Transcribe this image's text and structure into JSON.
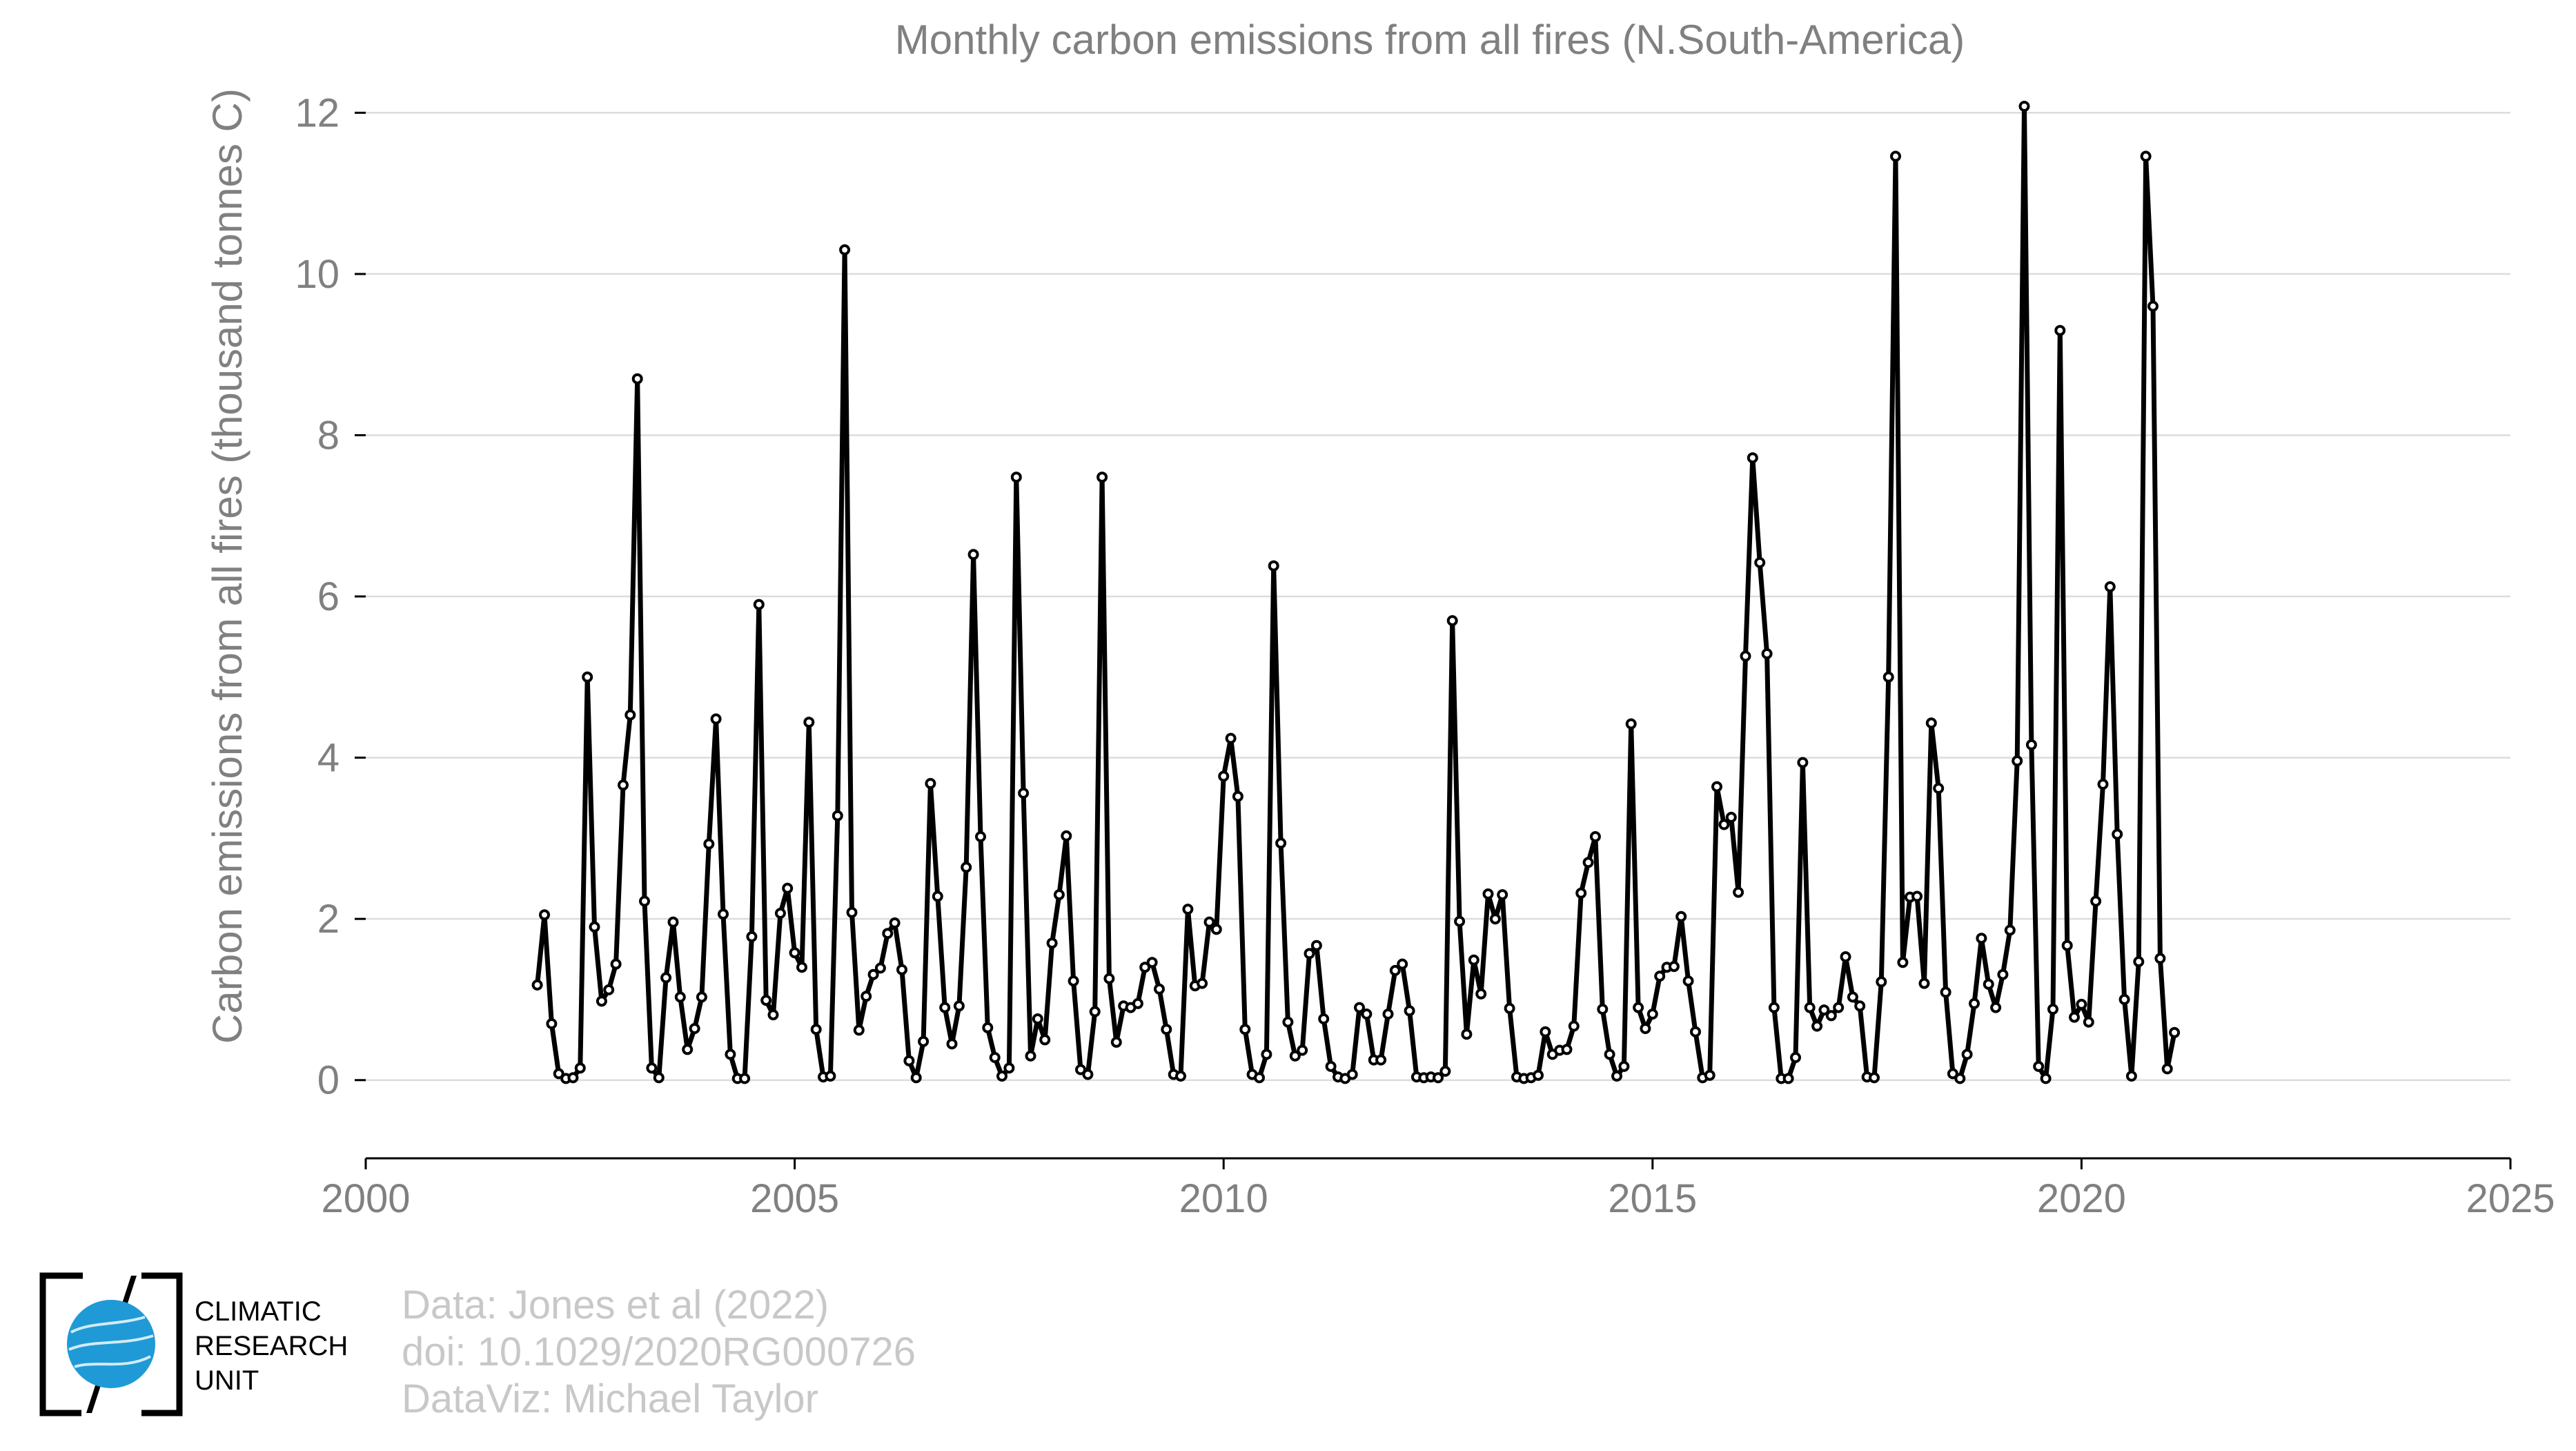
{
  "chart_data": {
    "type": "line",
    "title": "Monthly carbon emissions from all fires (N.South-America)",
    "xlabel": "",
    "ylabel": "Carbon emissions from all fires (thousand tonnes C)",
    "xlim": [
      2000,
      2025
    ],
    "ylim": [
      -0.97,
      12.2
    ],
    "x_ticks": [
      "2000",
      "2005",
      "2010",
      "2015",
      "2020",
      "2025"
    ],
    "y_ticks": [
      "0",
      "2",
      "4",
      "6",
      "8",
      "10",
      "12"
    ],
    "grid": "horizontal",
    "series": [
      {
        "start_year": 2002,
        "start_month": 1,
        "frequency": "monthly",
        "values": [
          1.18,
          2.05,
          0.7,
          0.08,
          0.02,
          0.03,
          0.15,
          5.0,
          1.9,
          0.98,
          1.12,
          1.44,
          3.66,
          4.53,
          8.7,
          2.22,
          0.15,
          0.03,
          1.27,
          1.96,
          1.03,
          0.38,
          0.64,
          1.03,
          2.93,
          4.48,
          2.06,
          0.32,
          0.02,
          0.02,
          1.78,
          5.9,
          0.99,
          0.81,
          2.07,
          2.38,
          1.58,
          1.4,
          4.44,
          0.63,
          0.04,
          0.05,
          3.28,
          10.3,
          2.08,
          0.62,
          1.04,
          1.31,
          1.39,
          1.82,
          1.95,
          1.37,
          0.24,
          0.03,
          0.48,
          3.68,
          2.28,
          0.9,
          0.45,
          0.92,
          2.64,
          6.52,
          3.02,
          0.65,
          0.28,
          0.05,
          0.15,
          7.48,
          3.56,
          0.3,
          0.76,
          0.5,
          1.7,
          2.3,
          3.03,
          1.23,
          0.13,
          0.07,
          0.85,
          7.48,
          1.26,
          0.47,
          0.92,
          0.9,
          0.95,
          1.4,
          1.46,
          1.13,
          0.63,
          0.07,
          0.05,
          2.12,
          1.17,
          1.2,
          1.96,
          1.87,
          3.77,
          4.24,
          3.52,
          0.63,
          0.07,
          0.03,
          0.32,
          6.38,
          2.94,
          0.72,
          0.3,
          0.37,
          1.57,
          1.67,
          0.76,
          0.17,
          0.04,
          0.02,
          0.07,
          0.9,
          0.82,
          0.25,
          0.25,
          0.82,
          1.36,
          1.44,
          0.86,
          0.04,
          0.03,
          0.04,
          0.03,
          0.11,
          5.7,
          1.97,
          0.57,
          1.49,
          1.07,
          2.31,
          2.0,
          2.3,
          0.89,
          0.04,
          0.02,
          0.03,
          0.06,
          0.6,
          0.32,
          0.37,
          0.38,
          0.67,
          2.32,
          2.7,
          3.02,
          0.88,
          0.32,
          0.05,
          0.17,
          4.42,
          0.9,
          0.64,
          0.82,
          1.29,
          1.4,
          1.41,
          2.03,
          1.23,
          0.6,
          0.03,
          0.06,
          3.64,
          3.17,
          3.26,
          2.33,
          5.26,
          7.72,
          6.42,
          5.29,
          0.9,
          0.02,
          0.02,
          0.28,
          3.94,
          0.9,
          0.67,
          0.87,
          0.8,
          0.9,
          1.53,
          1.03,
          0.92,
          0.04,
          0.03,
          1.22,
          5.0,
          11.46,
          1.46,
          2.27,
          2.28,
          1.2,
          4.43,
          3.62,
          1.09,
          0.08,
          0.02,
          0.32,
          0.95,
          1.76,
          1.19,
          0.9,
          1.31,
          1.86,
          3.96,
          12.08,
          4.16,
          0.17,
          0.02,
          0.88,
          9.3,
          1.67,
          0.78,
          0.94,
          0.72,
          2.22,
          3.67,
          6.12,
          3.05,
          1.0,
          0.05,
          1.47,
          11.46,
          9.6,
          1.51,
          0.14,
          0.59
        ]
      }
    ]
  },
  "credits": {
    "data": "Data: Jones et al (2022)",
    "doi": "doi: 10.1029/2020RG000726",
    "dataviz": "DataViz: Michael Taylor"
  },
  "logo": {
    "line1": "CLIMATIC",
    "line2": "RESEARCH",
    "line3": "UNIT",
    "color": "#1f9ad6"
  }
}
